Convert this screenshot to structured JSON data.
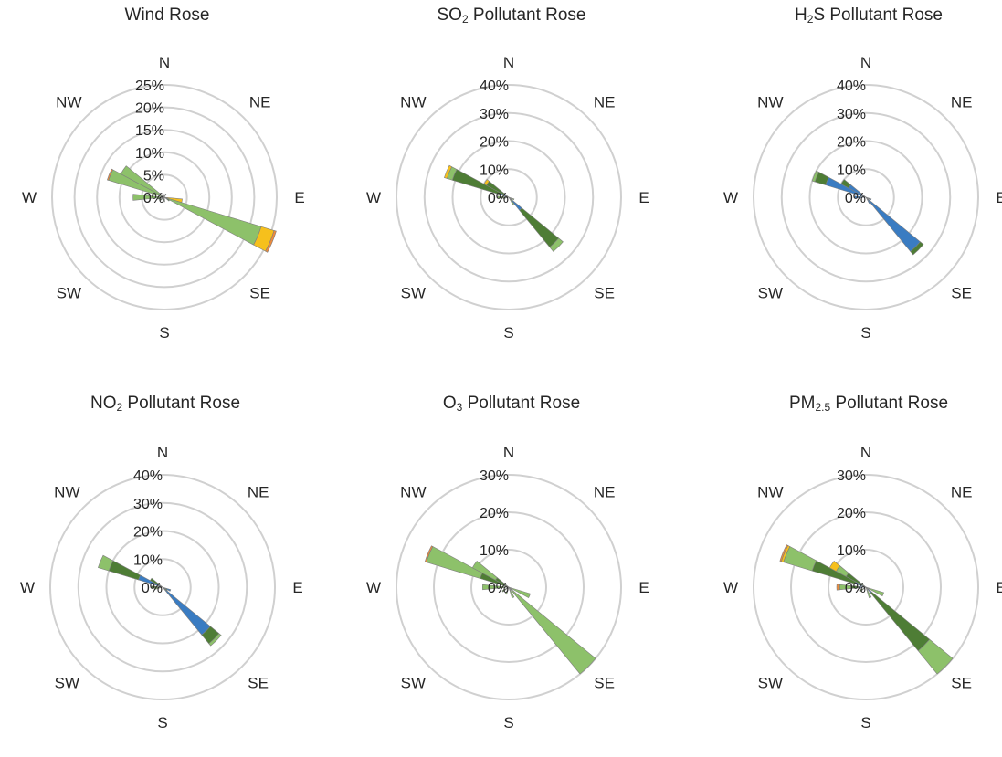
{
  "colors": {
    "light_green": "#8dc16a",
    "dark_green": "#4e7d35",
    "blue": "#3a7cc2",
    "yellow": "#f6c01c",
    "orange": "#ee8a3b",
    "grid": "#d0d0d0"
  },
  "chart_data": [
    {
      "type": "polar-stacked-bar",
      "title_main": "Wind Rose",
      "title_sub": "",
      "title_rest": "",
      "directions": [
        "N",
        "NE",
        "E",
        "SE",
        "S",
        "SW",
        "W",
        "NW"
      ],
      "rlim": [
        0,
        25
      ],
      "rticks": [
        "0%",
        "5%",
        "10%",
        "15%",
        "20%",
        "25%"
      ],
      "grid": true,
      "bars": [
        {
          "angle": 112.5,
          "stack": [
            {
              "color": "light_green",
              "value": 22.5
            },
            {
              "color": "yellow",
              "value": 3.0
            },
            {
              "color": "orange",
              "value": 0.5
            }
          ]
        },
        {
          "angle": 292.5,
          "stack": [
            {
              "color": "light_green",
              "value": 13.0
            },
            {
              "color": "orange",
              "value": 0.3
            }
          ]
        },
        {
          "angle": 303.75,
          "stack": [
            {
              "color": "light_green",
              "value": 11.0
            }
          ]
        },
        {
          "angle": 270,
          "stack": [
            {
              "color": "light_green",
              "value": 7.0
            }
          ]
        },
        {
          "angle": 258.75,
          "stack": [
            {
              "color": "dark_green",
              "value": 1.5
            }
          ]
        },
        {
          "angle": 236.25,
          "stack": [
            {
              "color": "dark_green",
              "value": 1.2
            }
          ]
        },
        {
          "angle": 101.25,
          "stack": [
            {
              "color": "yellow",
              "value": 4.0
            }
          ]
        },
        {
          "angle": 123.75,
          "stack": [
            {
              "color": "dark_green",
              "value": 1.3
            }
          ]
        },
        {
          "angle": 337.5,
          "stack": [
            {
              "color": "dark_green",
              "value": 1.0
            }
          ]
        },
        {
          "angle": 22.5,
          "stack": [
            {
              "color": "dark_green",
              "value": 0.8
            }
          ]
        },
        {
          "angle": 180,
          "stack": [
            {
              "color": "dark_green",
              "value": 1.0
            }
          ]
        }
      ]
    },
    {
      "type": "polar-stacked-bar",
      "title_main": "SO",
      "title_sub": "2",
      "title_rest": " Pollutant Rose",
      "directions": [
        "N",
        "NE",
        "E",
        "SE",
        "S",
        "SW",
        "W",
        "NW"
      ],
      "rlim": [
        0,
        40
      ],
      "rticks": [
        "0%",
        "10%",
        "20%",
        "30%",
        "40%"
      ],
      "grid": true,
      "bars": [
        {
          "angle": 135,
          "stack": [
            {
              "color": "blue",
              "value": 6.0
            },
            {
              "color": "dark_green",
              "value": 17.0
            },
            {
              "color": "light_green",
              "value": 2.0
            }
          ]
        },
        {
          "angle": 292.5,
          "stack": [
            {
              "color": "blue",
              "value": 3.0
            },
            {
              "color": "dark_green",
              "value": 18.0
            },
            {
              "color": "light_green",
              "value": 2.0
            },
            {
              "color": "yellow",
              "value": 1.0
            }
          ]
        },
        {
          "angle": 303.75,
          "stack": [
            {
              "color": "dark_green",
              "value": 9.0
            },
            {
              "color": "yellow",
              "value": 1.0
            }
          ]
        },
        {
          "angle": 270,
          "stack": [
            {
              "color": "light_green",
              "value": 4.0
            }
          ]
        },
        {
          "angle": 258.75,
          "stack": [
            {
              "color": "dark_green",
              "value": 2.0
            }
          ]
        },
        {
          "angle": 112.5,
          "stack": [
            {
              "color": "light_green",
              "value": 2.0
            }
          ]
        },
        {
          "angle": 146.25,
          "stack": [
            {
              "color": "light_green",
              "value": 3.0
            }
          ]
        }
      ]
    },
    {
      "type": "polar-stacked-bar",
      "title_main": "H",
      "title_sub": "2",
      "title_rest": "S Pollutant Rose",
      "directions": [
        "N",
        "NE",
        "E",
        "SE",
        "S",
        "SW",
        "W",
        "NW"
      ],
      "rlim": [
        0,
        40
      ],
      "rticks": [
        "0%",
        "10%",
        "20%",
        "30%",
        "40%"
      ],
      "grid": true,
      "bars": [
        {
          "angle": 135,
          "stack": [
            {
              "color": "blue",
              "value": 25.0
            },
            {
              "color": "dark_green",
              "value": 1.5
            }
          ]
        },
        {
          "angle": 292.5,
          "stack": [
            {
              "color": "blue",
              "value": 15.0
            },
            {
              "color": "dark_green",
              "value": 4.0
            },
            {
              "color": "light_green",
              "value": 1.0
            }
          ]
        },
        {
          "angle": 303.75,
          "stack": [
            {
              "color": "blue",
              "value": 7.0
            },
            {
              "color": "dark_green",
              "value": 3.0
            }
          ]
        },
        {
          "angle": 270,
          "stack": [
            {
              "color": "blue",
              "value": 4.0
            }
          ]
        },
        {
          "angle": 112.5,
          "stack": [
            {
              "color": "blue",
              "value": 2.0
            }
          ]
        },
        {
          "angle": 146.25,
          "stack": [
            {
              "color": "blue",
              "value": 2.5
            }
          ]
        }
      ]
    },
    {
      "type": "polar-stacked-bar",
      "title_main": "NO",
      "title_sub": "2",
      "title_rest": " Pollutant Rose",
      "directions": [
        "N",
        "NE",
        "E",
        "SE",
        "S",
        "SW",
        "W",
        "NW"
      ],
      "rlim": [
        0,
        40
      ],
      "rticks": [
        "0%",
        "10%",
        "20%",
        "30%",
        "40%"
      ],
      "grid": true,
      "bars": [
        {
          "angle": 135,
          "stack": [
            {
              "color": "blue",
              "value": 22.0
            },
            {
              "color": "dark_green",
              "value": 4.0
            },
            {
              "color": "light_green",
              "value": 1.0
            }
          ]
        },
        {
          "angle": 292.5,
          "stack": [
            {
              "color": "blue",
              "value": 9.0
            },
            {
              "color": "dark_green",
              "value": 11.0
            },
            {
              "color": "light_green",
              "value": 4.0
            }
          ]
        },
        {
          "angle": 303.75,
          "stack": [
            {
              "color": "dark_green",
              "value": 5.0
            }
          ]
        },
        {
          "angle": 270,
          "stack": [
            {
              "color": "dark_green",
              "value": 4.0
            }
          ]
        },
        {
          "angle": 258.75,
          "stack": [
            {
              "color": "light_green",
              "value": 3.0
            }
          ]
        },
        {
          "angle": 112.5,
          "stack": [
            {
              "color": "blue",
              "value": 3.0
            }
          ]
        },
        {
          "angle": 123.75,
          "stack": [
            {
              "color": "dark_green",
              "value": 2.0
            }
          ]
        }
      ]
    },
    {
      "type": "polar-stacked-bar",
      "title_main": "O",
      "title_sub": "3",
      "title_rest": " Pollutant Rose",
      "directions": [
        "N",
        "NE",
        "E",
        "SE",
        "S",
        "SW",
        "W",
        "NW"
      ],
      "rlim": [
        0,
        30
      ],
      "rticks": [
        "0%",
        "10%",
        "20%",
        "30%"
      ],
      "grid": true,
      "bars": [
        {
          "angle": 135,
          "stack": [
            {
              "color": "light_green",
              "value": 30.0
            }
          ]
        },
        {
          "angle": 292.5,
          "stack": [
            {
              "color": "dark_green",
              "value": 8.0
            },
            {
              "color": "light_green",
              "value": 15.0
            },
            {
              "color": "orange",
              "value": 0.4
            }
          ]
        },
        {
          "angle": 303.75,
          "stack": [
            {
              "color": "dark_green",
              "value": 4.0
            },
            {
              "color": "light_green",
              "value": 7.0
            }
          ]
        },
        {
          "angle": 270,
          "stack": [
            {
              "color": "light_green",
              "value": 7.0
            }
          ]
        },
        {
          "angle": 112.5,
          "stack": [
            {
              "color": "light_green",
              "value": 6.0
            }
          ]
        },
        {
          "angle": 157.5,
          "stack": [
            {
              "color": "light_green",
              "value": 3.0
            }
          ]
        },
        {
          "angle": 202.5,
          "stack": [
            {
              "color": "light_green",
              "value": 2.0
            }
          ]
        },
        {
          "angle": 236.25,
          "stack": [
            {
              "color": "dark_green",
              "value": 2.0
            }
          ]
        }
      ]
    },
    {
      "type": "polar-stacked-bar",
      "title_main": "PM",
      "title_sub": "2.5",
      "title_rest": " Pollutant Rose",
      "directions": [
        "N",
        "NE",
        "E",
        "SE",
        "S",
        "SW",
        "W",
        "NW"
      ],
      "rlim": [
        0,
        30
      ],
      "rticks": [
        "0%",
        "10%",
        "20%",
        "30%"
      ],
      "grid": true,
      "bars": [
        {
          "angle": 135,
          "stack": [
            {
              "color": "blue",
              "value": 2.0
            },
            {
              "color": "dark_green",
              "value": 20.0
            },
            {
              "color": "light_green",
              "value": 8.0
            }
          ]
        },
        {
          "angle": 292.5,
          "stack": [
            {
              "color": "blue",
              "value": 3.0
            },
            {
              "color": "dark_green",
              "value": 12.0
            },
            {
              "color": "light_green",
              "value": 8.0
            },
            {
              "color": "yellow",
              "value": 0.6
            },
            {
              "color": "orange",
              "value": 0.4
            }
          ]
        },
        {
          "angle": 303.75,
          "stack": [
            {
              "color": "dark_green",
              "value": 6.0
            },
            {
              "color": "light_green",
              "value": 3.0
            },
            {
              "color": "yellow",
              "value": 2.0
            }
          ]
        },
        {
          "angle": 270,
          "stack": [
            {
              "color": "blue",
              "value": 2.0
            },
            {
              "color": "dark_green",
              "value": 2.0
            },
            {
              "color": "light_green",
              "value": 3.0
            },
            {
              "color": "orange",
              "value": 0.8
            }
          ]
        },
        {
          "angle": 112.5,
          "stack": [
            {
              "color": "light_green",
              "value": 5.0
            }
          ]
        },
        {
          "angle": 157.5,
          "stack": [
            {
              "color": "light_green",
              "value": 3.0
            }
          ]
        },
        {
          "angle": 236.25,
          "stack": [
            {
              "color": "dark_green",
              "value": 2.0
            }
          ]
        }
      ]
    }
  ]
}
